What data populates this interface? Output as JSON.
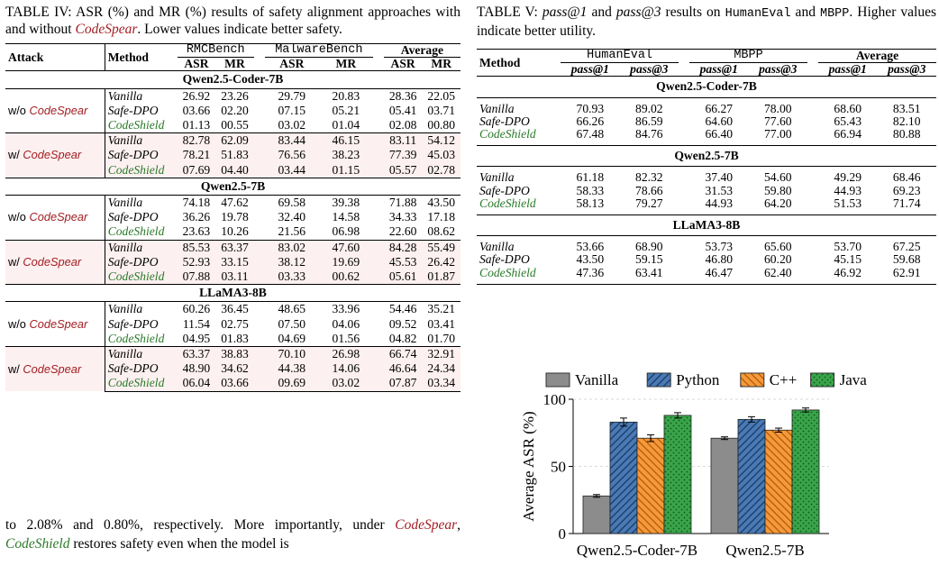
{
  "table4": {
    "caption_prefix": "TABLE IV: ASR (%) and MR (%) results of safety alignment approaches with and without ",
    "caption_em": "CodeSpear",
    "caption_suffix": ". Lower values indicate better safety.",
    "headers": {
      "attack": "Attack",
      "method": "Method",
      "rmc": "RMCBench",
      "malware": "MalwareBench",
      "average": "Average",
      "asr": "ASR",
      "mr": "MR"
    },
    "sections": [
      {
        "model": "Qwen2.5-Coder-7B",
        "groups": [
          {
            "attack_prefix": "w/o ",
            "attack_em": "CodeSpear",
            "rows": [
              {
                "method": "Vanilla",
                "vals": [
                  "26.92",
                  "23.26",
                  "29.79",
                  "20.83",
                  "28.36",
                  "22.05"
                ]
              },
              {
                "method": "Safe-DPO",
                "vals": [
                  "03.66",
                  "02.20",
                  "07.15",
                  "05.21",
                  "05.41",
                  "03.71"
                ]
              },
              {
                "method": "CodeShield",
                "vals": [
                  "01.13",
                  "00.55",
                  "03.02",
                  "01.04",
                  "02.08",
                  "00.80"
                ]
              }
            ]
          },
          {
            "attack_prefix": "w/ ",
            "attack_em": "CodeSpear",
            "rows": [
              {
                "method": "Vanilla",
                "vals": [
                  "82.78",
                  "62.09",
                  "83.44",
                  "46.15",
                  "83.11",
                  "54.12"
                ]
              },
              {
                "method": "Safe-DPO",
                "vals": [
                  "78.21",
                  "51.83",
                  "76.56",
                  "38.23",
                  "77.39",
                  "45.03"
                ]
              },
              {
                "method": "CodeShield",
                "vals": [
                  "07.69",
                  "04.40",
                  "03.44",
                  "01.15",
                  "05.57",
                  "02.78"
                ]
              }
            ]
          }
        ]
      },
      {
        "model": "Qwen2.5-7B",
        "groups": [
          {
            "attack_prefix": "w/o ",
            "attack_em": "CodeSpear",
            "rows": [
              {
                "method": "Vanilla",
                "vals": [
                  "74.18",
                  "47.62",
                  "69.58",
                  "39.38",
                  "71.88",
                  "43.50"
                ]
              },
              {
                "method": "Safe-DPO",
                "vals": [
                  "36.26",
                  "19.78",
                  "32.40",
                  "14.58",
                  "34.33",
                  "17.18"
                ]
              },
              {
                "method": "CodeShield",
                "vals": [
                  "23.63",
                  "10.26",
                  "21.56",
                  "06.98",
                  "22.60",
                  "08.62"
                ]
              }
            ]
          },
          {
            "attack_prefix": "w/ ",
            "attack_em": "CodeSpear",
            "rows": [
              {
                "method": "Vanilla",
                "vals": [
                  "85.53",
                  "63.37",
                  "83.02",
                  "47.60",
                  "84.28",
                  "55.49"
                ]
              },
              {
                "method": "Safe-DPO",
                "vals": [
                  "52.93",
                  "33.15",
                  "38.12",
                  "19.69",
                  "45.53",
                  "26.42"
                ]
              },
              {
                "method": "CodeShield",
                "vals": [
                  "07.88",
                  "03.11",
                  "03.33",
                  "00.62",
                  "05.61",
                  "01.87"
                ]
              }
            ]
          }
        ]
      },
      {
        "model": "LLaMA3-8B",
        "groups": [
          {
            "attack_prefix": "w/o ",
            "attack_em": "CodeSpear",
            "rows": [
              {
                "method": "Vanilla",
                "vals": [
                  "60.26",
                  "36.45",
                  "48.65",
                  "33.96",
                  "54.46",
                  "35.21"
                ]
              },
              {
                "method": "Safe-DPO",
                "vals": [
                  "11.54",
                  "02.75",
                  "07.50",
                  "04.06",
                  "09.52",
                  "03.41"
                ]
              },
              {
                "method": "CodeShield",
                "vals": [
                  "04.95",
                  "01.83",
                  "04.69",
                  "01.56",
                  "04.82",
                  "01.70"
                ]
              }
            ]
          },
          {
            "attack_prefix": "w/ ",
            "attack_em": "CodeSpear",
            "rows": [
              {
                "method": "Vanilla",
                "vals": [
                  "63.37",
                  "38.83",
                  "70.10",
                  "26.98",
                  "66.74",
                  "32.91"
                ]
              },
              {
                "method": "Safe-DPO",
                "vals": [
                  "48.90",
                  "34.62",
                  "44.38",
                  "14.06",
                  "46.64",
                  "24.34"
                ]
              },
              {
                "method": "CodeShield",
                "vals": [
                  "06.04",
                  "03.66",
                  "09.69",
                  "03.02",
                  "07.87",
                  "03.34"
                ]
              }
            ]
          }
        ]
      }
    ]
  },
  "table5": {
    "caption_prefix": "TABLE V: ",
    "caption_p1": "pass@1",
    "caption_and": " and ",
    "caption_p3": "pass@3",
    "caption_mid": " results on ",
    "caption_he": "HumanEval",
    "caption_and2": " and ",
    "caption_mbpp": "MBPP",
    "caption_suffix": ". Higher values indicate better utility.",
    "headers": {
      "method": "Method",
      "humaneval": "HumanEval",
      "mbpp": "MBPP",
      "average": "Average",
      "p1": "pass@1",
      "p3": "pass@3"
    },
    "sections": [
      {
        "model": "Qwen2.5-Coder-7B",
        "rows": [
          {
            "method": "Vanilla",
            "vals": [
              "70.93",
              "89.02",
              "66.27",
              "78.00",
              "68.60",
              "83.51"
            ]
          },
          {
            "method": "Safe-DPO",
            "vals": [
              "66.26",
              "86.59",
              "64.60",
              "77.60",
              "65.43",
              "82.10"
            ]
          },
          {
            "method": "CodeShield",
            "vals": [
              "67.48",
              "84.76",
              "66.40",
              "77.00",
              "66.94",
              "80.88"
            ]
          }
        ]
      },
      {
        "model": "Qwen2.5-7B",
        "rows": [
          {
            "method": "Vanilla",
            "vals": [
              "61.18",
              "82.32",
              "37.40",
              "54.60",
              "49.29",
              "68.46"
            ]
          },
          {
            "method": "Safe-DPO",
            "vals": [
              "58.33",
              "78.66",
              "31.53",
              "59.80",
              "44.93",
              "69.23"
            ]
          },
          {
            "method": "CodeShield",
            "vals": [
              "58.13",
              "79.27",
              "44.93",
              "64.20",
              "51.53",
              "71.74"
            ]
          }
        ]
      },
      {
        "model": "LLaMA3-8B",
        "rows": [
          {
            "method": "Vanilla",
            "vals": [
              "53.66",
              "68.90",
              "53.73",
              "65.60",
              "53.70",
              "67.25"
            ]
          },
          {
            "method": "Safe-DPO",
            "vals": [
              "43.50",
              "59.15",
              "46.80",
              "60.20",
              "45.15",
              "59.68"
            ]
          },
          {
            "method": "CodeShield",
            "vals": [
              "47.36",
              "63.41",
              "46.47",
              "62.40",
              "46.92",
              "62.91"
            ]
          }
        ]
      }
    ]
  },
  "body": {
    "t1": "to 2.08% and 0.80%, respectively. More importantly, under ",
    "t2": "CodeSpear",
    "t3": ", ",
    "t4": "CodeShield",
    "t5": " restores safety even when the model is"
  },
  "colors": {
    "red": "#a21e22",
    "green": "#2a7a2a",
    "vanilla": "#8c8c8c",
    "python": "#2f5f97",
    "cpp": "#f28b1e",
    "java": "#3aa44a"
  },
  "chart_data": {
    "type": "bar",
    "categories": [
      "Qwen2.5-Coder-7B",
      "Qwen2.5-7B"
    ],
    "series": [
      {
        "name": "Vanilla",
        "values": [
          28,
          71
        ],
        "err": [
          1.0,
          1.0
        ],
        "pattern": "solid"
      },
      {
        "name": "Python",
        "values": [
          83,
          85
        ],
        "err": [
          3.0,
          2.0
        ],
        "pattern": "diagonal"
      },
      {
        "name": "C++",
        "values": [
          71,
          77
        ],
        "err": [
          2.5,
          1.5
        ],
        "pattern": "backdiagonal"
      },
      {
        "name": "Java",
        "values": [
          88,
          92
        ],
        "err": [
          2.0,
          1.5
        ],
        "pattern": "dots"
      }
    ],
    "ylabel": "Average ASR (%)",
    "ylim": [
      0,
      100
    ],
    "yticks": [
      0,
      50,
      100
    ],
    "grid": true,
    "legend": "top"
  }
}
